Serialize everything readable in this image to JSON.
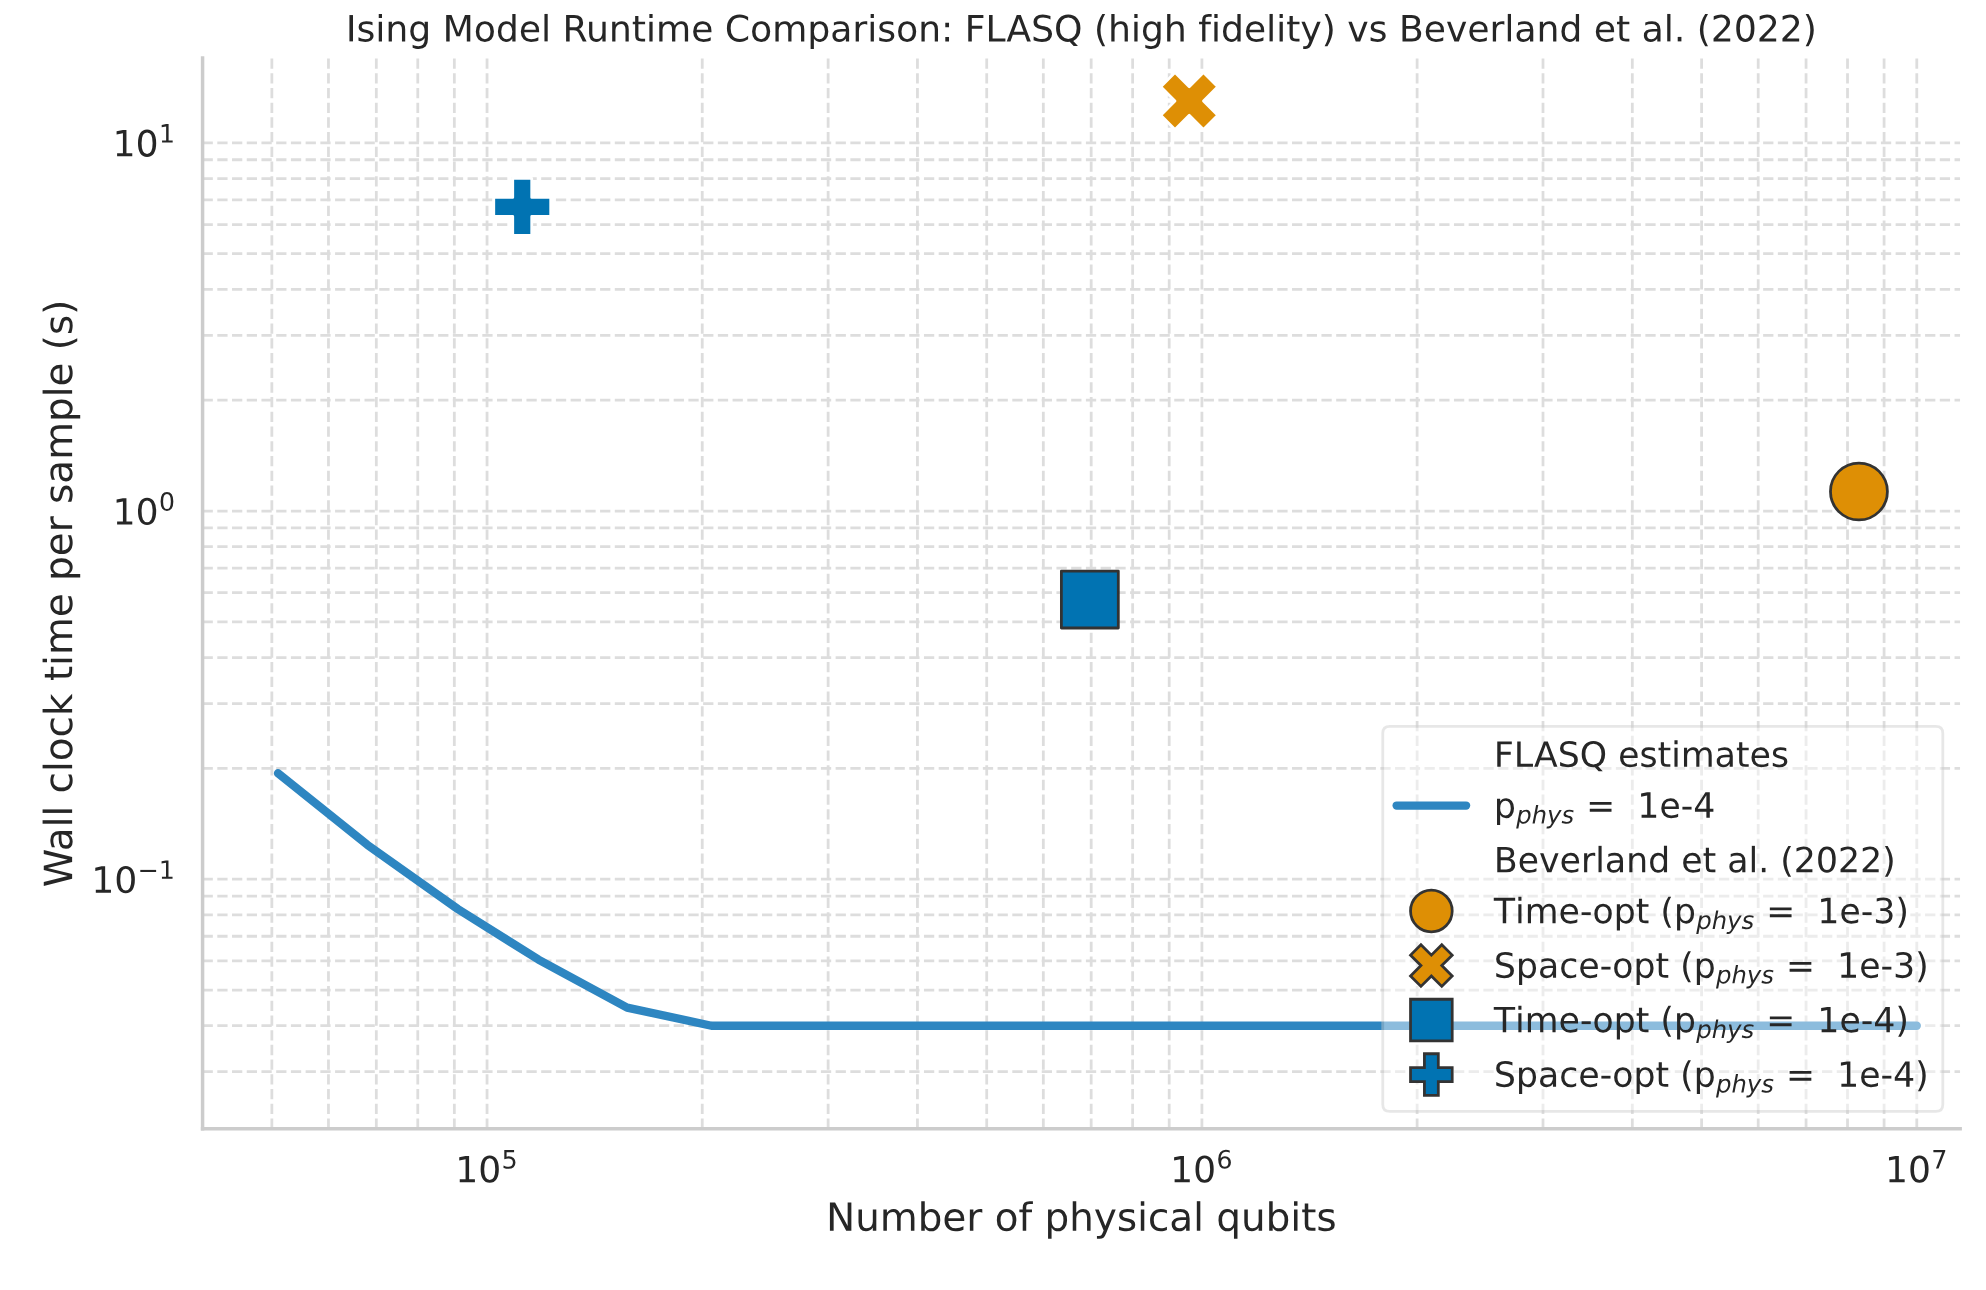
{
  "chart_data": {
    "type": "scatter",
    "title": "Ising Model Runtime Comparison: FLASQ (high fidelity) vs Beverland et al. (2022)",
    "xlabel": "Number of physical qubits",
    "ylabel": "Wall clock time per sample (s)",
    "log": "xy",
    "grid": true,
    "legend": "bottom right",
    "legend_title": "FLASQ estimates",
    "annotations": [
      "Beverland et al. (2022)"
    ],
    "xlim": [
      40000,
      11500000
    ],
    "ylim": [
      0.021,
      17
    ],
    "xticks": [
      {
        "value": 100000,
        "label": "10$^{5}$"
      },
      {
        "value": 1000000,
        "label": "10$^{6}$"
      },
      {
        "value": 10000000,
        "label": "10$^{7}$"
      }
    ],
    "yticks": [
      {
        "value": 0.1,
        "label": "10$^{−1}$"
      },
      {
        "value": 1,
        "label": "10$^{0}$"
      },
      {
        "value": 10,
        "label": "10$^{1}$"
      }
    ],
    "series": [
      {
        "type": "line",
        "name": "p$_{phys}$ =  1e-4",
        "color": "#2e86c1",
        "marker": "none",
        "line_style": "solid",
        "x": [
          51000,
          68000,
          91000,
          118000,
          157000,
          206000,
          1000000,
          10000000
        ],
        "values": [
          0.194,
          0.124,
          0.083,
          0.0605,
          0.0448,
          0.04,
          0.04,
          0.04
        ]
      },
      {
        "type": "scatter",
        "name": "Time-opt (p$_{phys}$ =  1e-3)",
        "color": "#de8f05",
        "marker": "circle",
        "x": [
          8300000
        ],
        "values": [
          1.13
        ]
      },
      {
        "type": "scatter",
        "name": "Space-opt (p$_{phys}$ =  1e-3)",
        "color": "#de8f05",
        "marker": "cross",
        "x": [
          960000
        ],
        "values": [
          13.0
        ]
      },
      {
        "type": "scatter",
        "name": "Time-opt (p$_{phys}$ =  1e-4)",
        "color": "#0173b2",
        "marker": "square",
        "x": [
          697000
        ],
        "values": [
          0.575
        ]
      },
      {
        "type": "scatter",
        "name": "Space-opt (p$_{phys}$ =  1e-4)",
        "color": "#0173b2",
        "marker": "plus",
        "x": [
          112000
        ],
        "values": [
          6.7
        ]
      }
    ]
  }
}
